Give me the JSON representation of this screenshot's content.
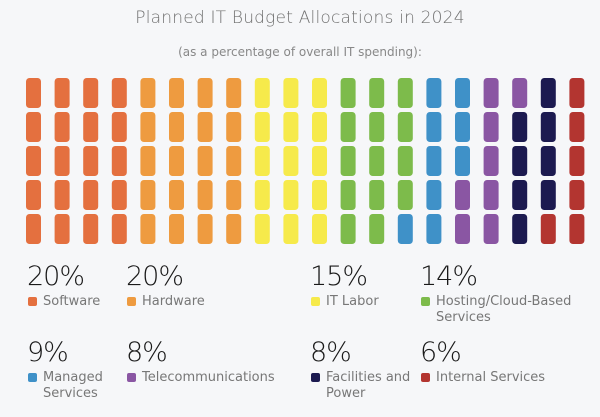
{
  "chart_data": {
    "type": "waffle",
    "title": "Planned IT Budget Allocations in 2024",
    "subtitle": "(as a percentage of overall IT spending):",
    "grid": {
      "rows": 5,
      "columns": 20,
      "fill_order": "column-major, top to bottom"
    },
    "series": [
      {
        "name": "Software",
        "value": 20,
        "label": "20%",
        "color": "#e4703f"
      },
      {
        "name": "Hardware",
        "value": 20,
        "label": "20%",
        "color": "#ee9b40"
      },
      {
        "name": "IT Labor",
        "value": 15,
        "label": "15%",
        "color": "#f6ea4b"
      },
      {
        "name": "Hosting/Cloud-Based Services",
        "value": 14,
        "label": "14%",
        "color": "#7dbb4b"
      },
      {
        "name": "Managed Services",
        "value": 9,
        "label": "9%",
        "color": "#3f91c8"
      },
      {
        "name": "Telecommunications",
        "value": 8,
        "label": "8%",
        "color": "#8a56a3"
      },
      {
        "name": "Facilities and Power",
        "value": 8,
        "label": "8%",
        "color": "#1c1a50"
      },
      {
        "name": "Internal Services",
        "value": 6,
        "label": "6%",
        "color": "#b33530"
      }
    ],
    "legend_placement": "bottom"
  }
}
